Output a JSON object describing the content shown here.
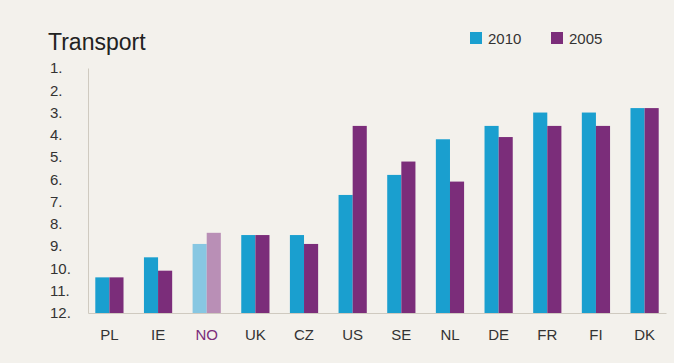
{
  "chart_data": {
    "type": "bar",
    "title": "Transport",
    "categories": [
      "PL",
      "IE",
      "NO",
      "UK",
      "CZ",
      "US",
      "SE",
      "NL",
      "DE",
      "FR",
      "FI",
      "DK"
    ],
    "series": [
      {
        "name": "2010",
        "color": "#1a9fcf",
        "colors": [
          "#1a9fcf",
          "#1a9fcf",
          "#87c7e2",
          "#1a9fcf",
          "#1a9fcf",
          "#1a9fcf",
          "#1a9fcf",
          "#1a9fcf",
          "#1a9fcf",
          "#1a9fcf",
          "#1a9fcf",
          "#1a9fcf"
        ],
        "values": [
          10.4,
          9.5,
          8.9,
          8.5,
          8.5,
          6.7,
          5.8,
          4.2,
          3.6,
          3.0,
          3.0,
          2.8
        ]
      },
      {
        "name": "2005",
        "color": "#7b2d7a",
        "colors": [
          "#7b2d7a",
          "#7b2d7a",
          "#b98fb6",
          "#7b2d7a",
          "#7b2d7a",
          "#7b2d7a",
          "#7b2d7a",
          "#7b2d7a",
          "#7b2d7a",
          "#7b2d7a",
          "#7b2d7a",
          "#7b2d7a"
        ],
        "values": [
          10.4,
          10.1,
          8.4,
          8.5,
          8.9,
          3.6,
          5.2,
          6.1,
          4.1,
          3.6,
          3.6,
          2.8
        ]
      }
    ],
    "ylim": [
      12,
      1
    ],
    "yticks": [
      {
        "value": 1,
        "label": "1."
      },
      {
        "value": 2,
        "label": "2."
      },
      {
        "value": 3,
        "label": "3."
      },
      {
        "value": 4,
        "label": "4."
      },
      {
        "value": 5,
        "label": "5."
      },
      {
        "value": 6,
        "label": "6."
      },
      {
        "value": 7,
        "label": "7."
      },
      {
        "value": 8,
        "label": "8."
      },
      {
        "value": 9,
        "label": "9."
      },
      {
        "value": 10,
        "label": "10."
      },
      {
        "value": 11,
        "label": "11."
      },
      {
        "value": 12,
        "label": "12."
      }
    ],
    "grid": false,
    "legend": "top-right"
  }
}
